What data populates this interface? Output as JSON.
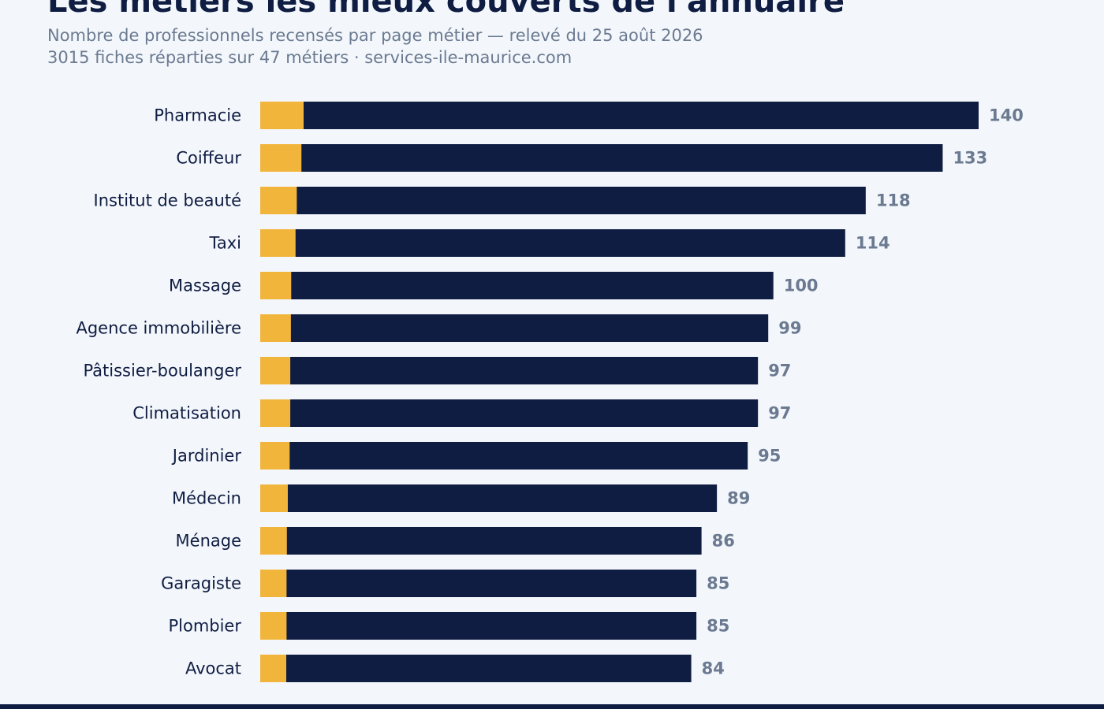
{
  "title": "Les métiers les mieux couverts de l'annuaire",
  "subtitle_line1": "Nombre de professionnels recensés par page métier — relevé du 25 août 2026",
  "subtitle_line2": "3015 fiches réparties sur 47 métiers · services-ile-maurice.com",
  "colors": {
    "background": "#f3f7fc",
    "bar": "#101d42",
    "accent": "#f2b53c",
    "category_label": "#101d42",
    "value_label": "#6b7a90",
    "footer": "#101d42"
  },
  "chart_data": {
    "type": "bar",
    "orientation": "horizontal",
    "categories": [
      "Pharmacie",
      "Coiffeur",
      "Institut de beauté",
      "Taxi",
      "Massage",
      "Agence immobilière",
      "Pâtissier-boulanger",
      "Climatisation",
      "Jardinier",
      "Médecin",
      "Ménage",
      "Garagiste",
      "Plombier",
      "Avocat"
    ],
    "values": [
      140,
      133,
      118,
      114,
      100,
      99,
      97,
      97,
      95,
      89,
      86,
      85,
      85,
      84
    ],
    "value_labels": [
      "140",
      "133",
      "118",
      "114",
      "100",
      "99",
      "97",
      "97",
      "95",
      "89",
      "86",
      "85",
      "85",
      "84"
    ],
    "xlim": [
      0,
      140
    ],
    "grid": false,
    "legend": "none"
  }
}
